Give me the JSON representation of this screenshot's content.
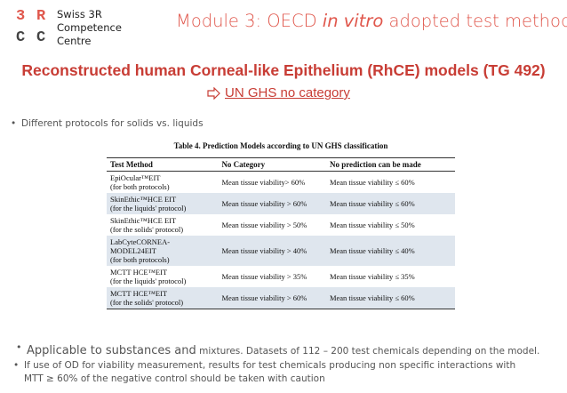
{
  "logo": {
    "letters": [
      "3",
      "R",
      "C",
      "C"
    ],
    "lines": [
      "Swiss 3R",
      "Competence",
      "Centre"
    ]
  },
  "header": {
    "title": [
      "Module 3: OECD ",
      "in vitro",
      " adopted test methods"
    ]
  },
  "subtitle": "Reconstructed human Corneal-like Epithelium (RhCE) models (TG 492)",
  "highlight": "UN GHS no category",
  "bullet_top": "Different protocols for solids vs. liquids",
  "table": {
    "caption": "Table 4. Prediction Models according to UN GHS classification",
    "header": [
      "Test Method",
      "No Category",
      "No prediction can be made"
    ],
    "rows": [
      [
        [
          "EpiOcular™EIT",
          "(for both protocols)"
        ],
        "Mean tissue viability> 60%",
        "Mean tissue viability ≤ 60%"
      ],
      [
        [
          "SkinEthic™HCE EIT",
          "(for the liquids' protocol)"
        ],
        "Mean tissue viability > 60%",
        "Mean tissue viability ≤ 60%"
      ],
      [
        [
          "SkinEthic™HCE EIT",
          "(for the solids' protocol)"
        ],
        "Mean tissue viability > 50%",
        "Mean tissue viability ≤ 50%"
      ],
      [
        [
          "LabCyteCORNEA-",
          "MODEL24EIT",
          "(for both protocols)"
        ],
        "Mean tissue viability > 40%",
        "Mean tissue viability ≤ 40%"
      ],
      [
        [
          "MCTT HCE™EIT",
          "(for the liquids' protocol)"
        ],
        "Mean tissue viability > 35%",
        "Mean tissue viability ≤ 35%"
      ],
      [
        [
          "MCTT HCE™EIT",
          "(for the solids' protocol)"
        ],
        "Mean tissue viability > 60%",
        "Mean tissue viability ≤ 60%"
      ]
    ]
  },
  "bullets": [
    [
      "Applicable to substances and",
      " mixtures. Datasets of 112 – 200 test chemicals depending on the model."
    ],
    [
      "If use of OD for viability measurement, results for test chemicals producing non specific interactions with",
      "MTT ≥ 60% of the negative control should be taken with caution"
    ]
  ]
}
